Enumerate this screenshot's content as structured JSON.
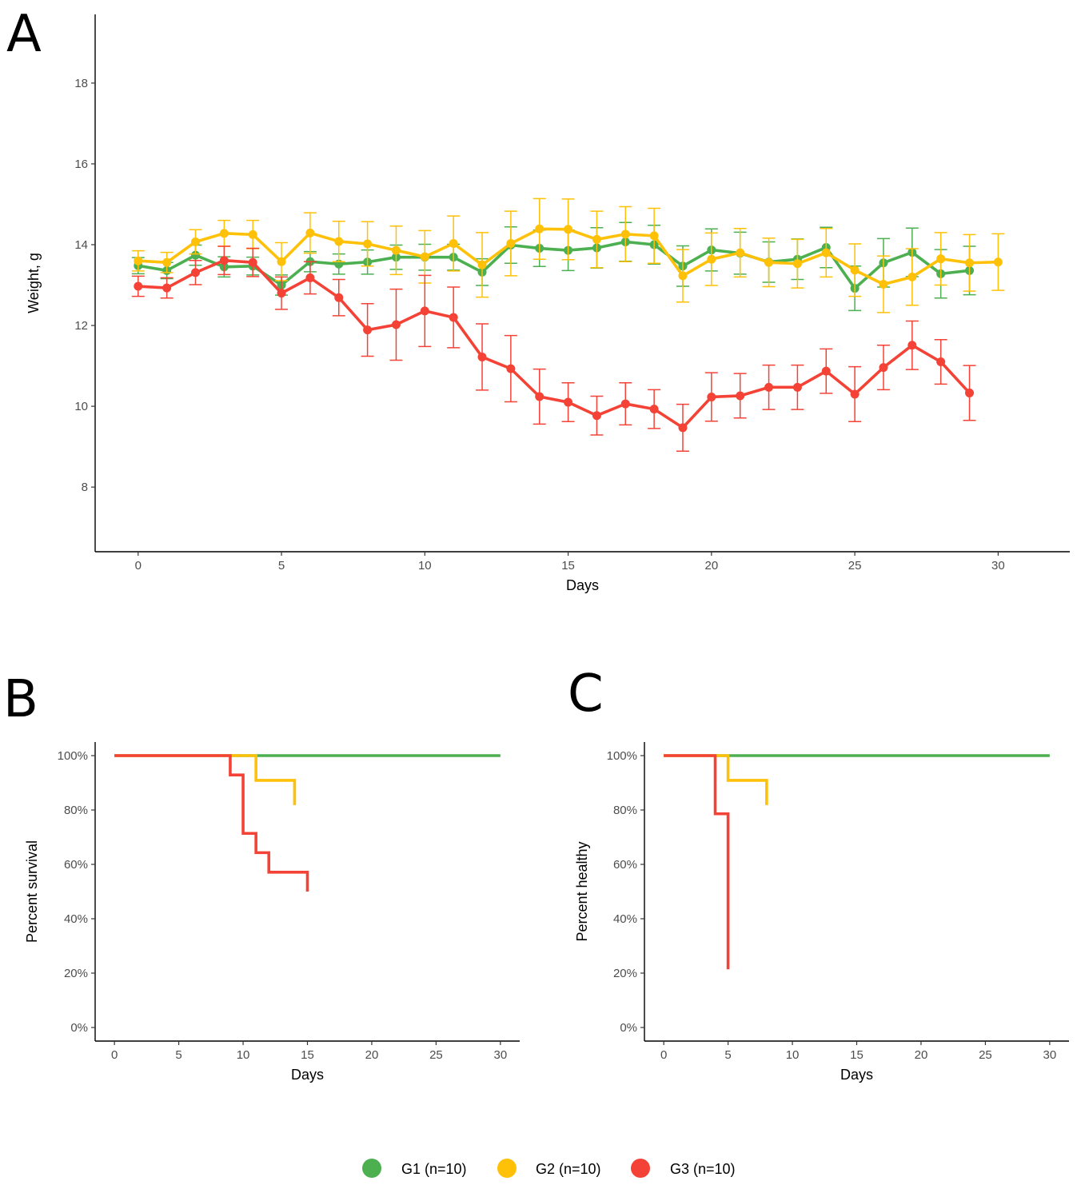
{
  "panels": {
    "a": "A",
    "b": "B",
    "c": "C"
  },
  "colors": {
    "G1": "#4caf50",
    "G2": "#ffc107",
    "G3": "#f44336"
  },
  "legend": [
    {
      "key": "G1",
      "label": "G1 (n=10)"
    },
    {
      "key": "G2",
      "label": "G2 (n=10)"
    },
    {
      "key": "G3",
      "label": "G3 (n=10)"
    }
  ],
  "chart_data": [
    {
      "type": "line",
      "panel": "A",
      "title": "",
      "xlabel": "Days",
      "ylabel": "Weight, g",
      "xlim": [
        -1.5,
        32.5
      ],
      "ylim": [
        6.4,
        19.7
      ],
      "xticks": [
        0,
        5,
        10,
        15,
        20,
        25,
        30
      ],
      "yticks": [
        8,
        10,
        12,
        14,
        16,
        18
      ],
      "grid": false,
      "error_bars": true,
      "series": [
        {
          "key": "G1",
          "x": [
            0,
            1,
            2,
            3,
            4,
            5,
            6,
            7,
            8,
            9,
            10,
            11,
            12,
            13,
            14,
            15,
            16,
            17,
            18,
            19,
            20,
            21,
            22,
            23,
            24,
            25,
            26,
            27,
            28,
            29
          ],
          "y": [
            13.48,
            13.36,
            13.74,
            13.45,
            13.47,
            13.0,
            13.58,
            13.52,
            13.57,
            13.69,
            13.69,
            13.69,
            13.32,
            13.99,
            13.91,
            13.86,
            13.92,
            14.07,
            14.0,
            13.47,
            13.87,
            13.79,
            13.57,
            13.64,
            13.93,
            12.92,
            13.55,
            13.81,
            13.28,
            13.36
          ],
          "err": [
            0.2,
            0.2,
            0.25,
            0.25,
            0.22,
            0.25,
            0.25,
            0.25,
            0.3,
            0.3,
            0.32,
            0.32,
            0.33,
            0.45,
            0.45,
            0.5,
            0.5,
            0.48,
            0.48,
            0.5,
            0.52,
            0.52,
            0.5,
            0.5,
            0.5,
            0.55,
            0.6,
            0.6,
            0.6,
            0.6
          ]
        },
        {
          "key": "G2",
          "x": [
            0,
            1,
            2,
            3,
            4,
            5,
            6,
            7,
            8,
            9,
            10,
            11,
            12,
            13,
            14,
            15,
            16,
            17,
            18,
            19,
            20,
            21,
            22,
            23,
            24,
            25,
            26,
            27,
            28,
            29,
            30
          ],
          "y": [
            13.6,
            13.56,
            14.07,
            14.28,
            14.25,
            13.58,
            14.29,
            14.08,
            14.02,
            13.86,
            13.7,
            14.03,
            13.5,
            14.03,
            14.39,
            14.38,
            14.13,
            14.26,
            14.22,
            13.23,
            13.64,
            13.8,
            13.56,
            13.53,
            13.8,
            13.37,
            13.02,
            13.2,
            13.65,
            13.55,
            13.57
          ],
          "err": [
            0.25,
            0.25,
            0.3,
            0.32,
            0.35,
            0.47,
            0.5,
            0.5,
            0.55,
            0.6,
            0.65,
            0.68,
            0.8,
            0.8,
            0.75,
            0.75,
            0.7,
            0.68,
            0.68,
            0.65,
            0.65,
            0.6,
            0.6,
            0.6,
            0.6,
            0.65,
            0.7,
            0.7,
            0.65,
            0.7,
            0.7
          ]
        },
        {
          "key": "G3",
          "x": [
            0,
            1,
            2,
            3,
            4,
            5,
            6,
            7,
            8,
            9,
            10,
            11,
            12,
            13,
            14,
            15,
            16,
            17,
            18,
            19,
            20,
            21,
            22,
            23,
            24,
            25,
            26,
            27,
            28,
            29
          ],
          "y": [
            12.97,
            12.93,
            13.31,
            13.61,
            13.56,
            12.8,
            13.18,
            12.69,
            11.89,
            12.02,
            12.36,
            12.2,
            11.22,
            10.93,
            10.24,
            10.1,
            9.77,
            10.06,
            9.93,
            9.47,
            10.23,
            10.26,
            10.47,
            10.47,
            10.87,
            10.3,
            10.96,
            11.51,
            11.1,
            10.33
          ],
          "err": [
            0.25,
            0.25,
            0.3,
            0.35,
            0.35,
            0.4,
            0.4,
            0.45,
            0.65,
            0.88,
            0.88,
            0.75,
            0.82,
            0.82,
            0.68,
            0.48,
            0.48,
            0.52,
            0.48,
            0.58,
            0.6,
            0.55,
            0.55,
            0.55,
            0.55,
            0.68,
            0.55,
            0.6,
            0.55,
            0.68
          ]
        }
      ]
    },
    {
      "type": "line",
      "step": true,
      "panel": "B",
      "xlabel": "Days",
      "ylabel": "Percent survival",
      "xlim": [
        -1.5,
        31.5
      ],
      "ylim": [
        -5,
        105
      ],
      "xticks": [
        0,
        5,
        10,
        15,
        20,
        25,
        30
      ],
      "yticks": [
        0,
        20,
        40,
        60,
        80,
        100
      ],
      "ytick_labels": [
        "0%",
        "20%",
        "40%",
        "60%",
        "80%",
        "100%"
      ],
      "grid": false,
      "series": [
        {
          "key": "G1",
          "x": [
            0,
            30
          ],
          "y": [
            100,
            100
          ]
        },
        {
          "key": "G2",
          "x": [
            0,
            11,
            14
          ],
          "y": [
            100,
            90.9,
            81.8
          ]
        },
        {
          "key": "G3",
          "x": [
            0,
            9,
            10,
            11,
            12,
            15
          ],
          "y": [
            100,
            92.9,
            71.4,
            64.3,
            57.1,
            50
          ]
        }
      ]
    },
    {
      "type": "line",
      "step": true,
      "panel": "C",
      "xlabel": "Days",
      "ylabel": "Percent healthy",
      "xlim": [
        -1.5,
        31.5
      ],
      "ylim": [
        -5,
        105
      ],
      "xticks": [
        0,
        5,
        10,
        15,
        20,
        25,
        30
      ],
      "yticks": [
        0,
        20,
        40,
        60,
        80,
        100
      ],
      "ytick_labels": [
        "0%",
        "20%",
        "40%",
        "60%",
        "80%",
        "100%"
      ],
      "grid": false,
      "series": [
        {
          "key": "G1",
          "x": [
            0,
            30
          ],
          "y": [
            100,
            100
          ]
        },
        {
          "key": "G2",
          "x": [
            0,
            5,
            8
          ],
          "y": [
            100,
            90.9,
            81.8
          ]
        },
        {
          "key": "G3",
          "x": [
            0,
            4,
            5
          ],
          "y": [
            100,
            78.6,
            21.4
          ]
        }
      ]
    }
  ]
}
